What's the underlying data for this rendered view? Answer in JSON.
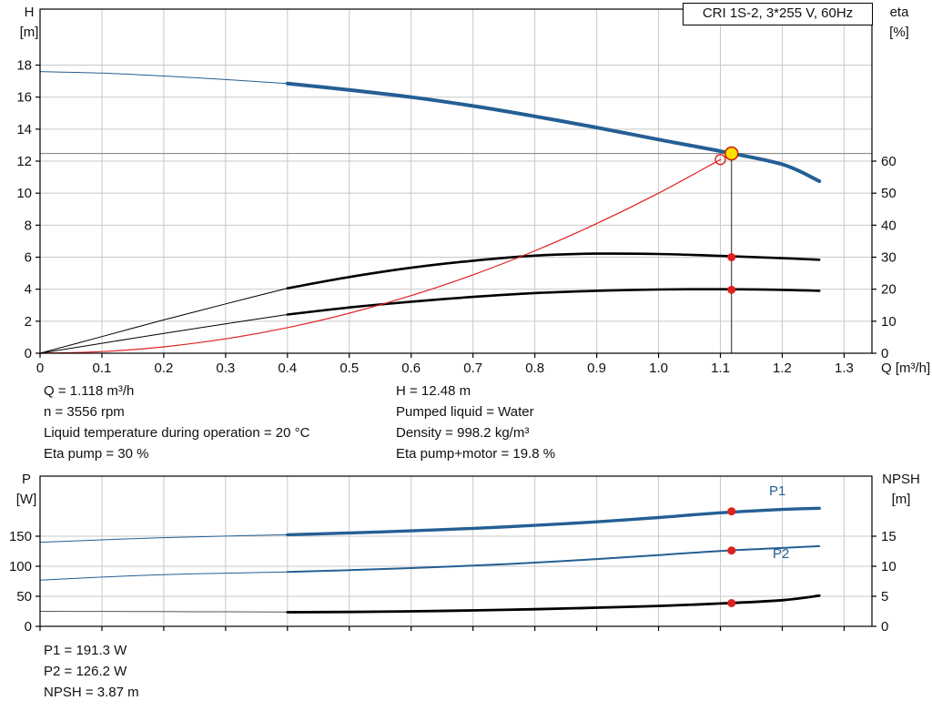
{
  "title_box": {
    "label": "CRI 1S-2, 3*255 V, 60Hz"
  },
  "top_axis_labels": {
    "left_1": "H",
    "left_2": "[m]",
    "right_1": "eta",
    "right_2": "[%]"
  },
  "bottom_axis_labels": {
    "left_1": "P",
    "left_2": "[W]",
    "right_1": "NPSH",
    "right_2": "[m]"
  },
  "curve_labels": {
    "p1": "P1",
    "p2": "P2"
  },
  "operating_point_text": {
    "q": "Q = 1.118 m³/h",
    "n": "n = 3556 rpm",
    "temp": "Liquid temperature during operation = 20 °C",
    "eta_pump": "Eta pump = 30 %",
    "h": "H = 12.48 m",
    "liquid": "Pumped liquid = Water",
    "density": "Density = 998.2 kg/m³",
    "eta_total": "Eta pump+motor = 19.8 %"
  },
  "power_point_text": {
    "p1": "P1 = 191.3 W",
    "p2": "P2 = 126.2 W",
    "npsh": "NPSH = 3.87 m"
  },
  "colors": {
    "curve_blue": "#245f94",
    "red": "#e02020",
    "black": "#000000",
    "grid": "#c9c9c9",
    "duty_line_gray": "#8c8c8c",
    "duty_fill_yellow": "#ffe100",
    "duty_ring": "#cc2200"
  },
  "chart_data": [
    {
      "id": "hq",
      "type": "line",
      "title": "CRI 1S-2, 3*255 V, 60Hz",
      "xlabel": "Q [m³/h]",
      "ylabel_left": "H [m]",
      "ylabel_right": "eta [%]",
      "xlim": [
        0,
        1.345
      ],
      "ylim_left": [
        0,
        21.5
      ],
      "right_scale": 0.2,
      "grid": true,
      "xticks": [
        {
          "v": 0,
          "label": "0"
        },
        {
          "v": 0.1,
          "label": "0.1"
        },
        {
          "v": 0.2,
          "label": "0.2"
        },
        {
          "v": 0.3,
          "label": "0.3"
        },
        {
          "v": 0.4,
          "label": "0.4"
        },
        {
          "v": 0.5,
          "label": "0.5"
        },
        {
          "v": 0.6,
          "label": "0.6"
        },
        {
          "v": 0.7,
          "label": "0.7"
        },
        {
          "v": 0.8,
          "label": "0.8"
        },
        {
          "v": 0.9,
          "label": "0.9"
        },
        {
          "v": 1.0,
          "label": "1.0"
        },
        {
          "v": 1.1,
          "label": "1.1"
        },
        {
          "v": 1.2,
          "label": "1.2"
        },
        {
          "v": 1.3,
          "label": "1.3"
        }
      ],
      "yticks_left": [
        {
          "v": 0,
          "label": "0"
        },
        {
          "v": 2,
          "label": "2"
        },
        {
          "v": 4,
          "label": "4"
        },
        {
          "v": 6,
          "label": "6"
        },
        {
          "v": 8,
          "label": "8"
        },
        {
          "v": 10,
          "label": "10"
        },
        {
          "v": 12,
          "label": "12"
        },
        {
          "v": 14,
          "label": "14"
        },
        {
          "v": 16,
          "label": "16"
        },
        {
          "v": 18,
          "label": "18"
        }
      ],
      "yticks_right": [
        {
          "v": 0,
          "label": "0"
        },
        {
          "v": 10,
          "label": "10"
        },
        {
          "v": 20,
          "label": "20"
        },
        {
          "v": 30,
          "label": "30"
        },
        {
          "v": 40,
          "label": "40"
        },
        {
          "v": 50,
          "label": "50"
        },
        {
          "v": 60,
          "label": "60"
        }
      ],
      "series": [
        {
          "name": "eta-pump-low-flow",
          "axis": "right",
          "color": "#000000",
          "width": 1,
          "points": [
            [
              0,
              0
            ],
            [
              0.1,
              5.2
            ],
            [
              0.2,
              10.4
            ],
            [
              0.3,
              15.4
            ],
            [
              0.4,
              20.3
            ]
          ]
        },
        {
          "name": "eta-pump-motor-low-flow",
          "axis": "right",
          "color": "#000000",
          "width": 1,
          "points": [
            [
              0,
              0
            ],
            [
              0.1,
              3.1
            ],
            [
              0.2,
              6.2
            ],
            [
              0.3,
              9.2
            ],
            [
              0.4,
              12.1
            ]
          ]
        },
        {
          "name": "eta-pump-curve",
          "axis": "right",
          "color": "#000000",
          "width": 2.6,
          "points": [
            [
              0.4,
              20.3
            ],
            [
              0.5,
              23.8
            ],
            [
              0.6,
              26.7
            ],
            [
              0.7,
              28.9
            ],
            [
              0.8,
              30.5
            ],
            [
              0.9,
              31.1
            ],
            [
              1.0,
              31.0
            ],
            [
              1.1,
              30.4
            ],
            [
              1.2,
              29.7
            ],
            [
              1.26,
              29.2
            ]
          ]
        },
        {
          "name": "eta-pump-motor-curve",
          "axis": "right",
          "color": "#000000",
          "width": 2.6,
          "points": [
            [
              0.4,
              12.1
            ],
            [
              0.5,
              14.3
            ],
            [
              0.6,
              16.1
            ],
            [
              0.7,
              17.6
            ],
            [
              0.8,
              18.8
            ],
            [
              0.9,
              19.5
            ],
            [
              1.0,
              19.9
            ],
            [
              1.1,
              20.0
            ],
            [
              1.2,
              19.8
            ],
            [
              1.26,
              19.5
            ]
          ]
        },
        {
          "name": "system-curve",
          "axis": "left",
          "color": "#e02020",
          "width": 1.2,
          "points": [
            [
              0,
              0
            ],
            [
              0.1,
              0.1
            ],
            [
              0.2,
              0.4
            ],
            [
              0.3,
              0.9
            ],
            [
              0.4,
              1.6
            ],
            [
              0.5,
              2.5
            ],
            [
              0.6,
              3.6
            ],
            [
              0.7,
              4.9
            ],
            [
              0.8,
              6.4
            ],
            [
              0.9,
              8.1
            ],
            [
              1.0,
              10.0
            ],
            [
              1.1,
              12.1
            ]
          ]
        },
        {
          "name": "head-curve-low-flow",
          "axis": "left",
          "color": "#245f94",
          "width": 1,
          "points": [
            [
              0,
              17.6
            ],
            [
              0.1,
              17.5
            ],
            [
              0.2,
              17.32
            ],
            [
              0.3,
              17.1
            ],
            [
              0.4,
              16.85
            ]
          ]
        },
        {
          "name": "head-curve",
          "axis": "left",
          "color": "#245f94",
          "width": 4,
          "points": [
            [
              0.4,
              16.85
            ],
            [
              0.5,
              16.45
            ],
            [
              0.6,
              16.0
            ],
            [
              0.7,
              15.45
            ],
            [
              0.8,
              14.8
            ],
            [
              0.9,
              14.1
            ],
            [
              1.0,
              13.35
            ],
            [
              1.1,
              12.62
            ],
            [
              1.2,
              11.8
            ],
            [
              1.26,
              10.75
            ]
          ]
        }
      ],
      "duty": {
        "vline_x": 1.118,
        "vline_top": 12.48,
        "hline_y": 12.48
      },
      "markers": [
        {
          "name": "requested-duty-point",
          "type": "open",
          "axis": "left",
          "x": 1.1,
          "y": 12.1
        },
        {
          "name": "eta-pump-duty-point",
          "type": "dot",
          "axis": "right",
          "x": 1.118,
          "y": 30.0
        },
        {
          "name": "eta-pump-motor-duty-point",
          "type": "dot",
          "axis": "right",
          "x": 1.118,
          "y": 19.8
        },
        {
          "name": "duty-point",
          "type": "duty",
          "axis": "left",
          "x": 1.118,
          "y": 12.48
        }
      ]
    },
    {
      "id": "power",
      "type": "line",
      "title": "",
      "xlabel": "",
      "ylabel_left": "P [W]",
      "ylabel_right": "NPSH [m]",
      "xlim": [
        0,
        1.345
      ],
      "ylim_left": [
        0,
        250
      ],
      "right_scale": 10,
      "grid": true,
      "xticks": [
        {
          "v": 0
        },
        {
          "v": 0.1
        },
        {
          "v": 0.2
        },
        {
          "v": 0.3
        },
        {
          "v": 0.4
        },
        {
          "v": 0.5
        },
        {
          "v": 0.6
        },
        {
          "v": 0.7
        },
        {
          "v": 0.8
        },
        {
          "v": 0.9
        },
        {
          "v": 1.0
        },
        {
          "v": 1.1
        },
        {
          "v": 1.2
        },
        {
          "v": 1.3
        }
      ],
      "yticks_left": [
        {
          "v": 0,
          "label": "0"
        },
        {
          "v": 50,
          "label": "50"
        },
        {
          "v": 100,
          "label": "100"
        },
        {
          "v": 150,
          "label": "150"
        }
      ],
      "yticks_right": [
        {
          "v": 0,
          "label": "0"
        },
        {
          "v": 5,
          "label": "5"
        },
        {
          "v": 10,
          "label": "10"
        },
        {
          "v": 15,
          "label": "15"
        }
      ],
      "series": [
        {
          "name": "p1-low-flow",
          "axis": "left",
          "color": "#245f94",
          "width": 1,
          "points": [
            [
              0,
              140
            ],
            [
              0.1,
              144
            ],
            [
              0.2,
              147.5
            ],
            [
              0.3,
              150.2
            ],
            [
              0.4,
              152.5
            ]
          ]
        },
        {
          "name": "p2-low-flow",
          "axis": "left",
          "color": "#245f94",
          "width": 1,
          "points": [
            [
              0,
              77
            ],
            [
              0.1,
              82
            ],
            [
              0.2,
              86
            ],
            [
              0.3,
              88.5
            ],
            [
              0.4,
              90.5
            ]
          ]
        },
        {
          "name": "npsh-low-flow",
          "axis": "right",
          "color": "#555555",
          "width": 1,
          "points": [
            [
              0,
              2.5
            ],
            [
              0.1,
              2.48
            ],
            [
              0.2,
              2.45
            ],
            [
              0.3,
              2.42
            ],
            [
              0.4,
              2.38
            ]
          ]
        },
        {
          "name": "p1-curve",
          "axis": "left",
          "color": "#245f94",
          "width": 3.4,
          "points": [
            [
              0.4,
              152.5
            ],
            [
              0.5,
              155.5
            ],
            [
              0.6,
              159
            ],
            [
              0.7,
              163
            ],
            [
              0.8,
              168
            ],
            [
              0.9,
              174
            ],
            [
              1.0,
              181
            ],
            [
              1.1,
              189
            ],
            [
              1.2,
              194.5
            ],
            [
              1.26,
              196.5
            ]
          ]
        },
        {
          "name": "p2-curve",
          "axis": "left",
          "color": "#245f94",
          "width": 2,
          "points": [
            [
              0.4,
              90.5
            ],
            [
              0.5,
              93.5
            ],
            [
              0.6,
              97
            ],
            [
              0.7,
              101
            ],
            [
              0.8,
              106
            ],
            [
              0.9,
              112
            ],
            [
              1.0,
              118.5
            ],
            [
              1.1,
              125.5
            ],
            [
              1.2,
              130.5
            ],
            [
              1.26,
              133.5
            ]
          ]
        },
        {
          "name": "npsh-curve",
          "axis": "right",
          "color": "#000000",
          "width": 2.8,
          "points": [
            [
              0.4,
              2.35
            ],
            [
              0.5,
              2.4
            ],
            [
              0.6,
              2.5
            ],
            [
              0.7,
              2.65
            ],
            [
              0.8,
              2.85
            ],
            [
              0.9,
              3.1
            ],
            [
              1.0,
              3.4
            ],
            [
              1.1,
              3.8
            ],
            [
              1.2,
              4.35
            ],
            [
              1.26,
              5.1
            ]
          ]
        }
      ],
      "markers": [
        {
          "name": "p1-duty-point",
          "type": "dot",
          "axis": "left",
          "x": 1.118,
          "y": 191.3
        },
        {
          "name": "p2-duty-point",
          "type": "dot",
          "axis": "left",
          "x": 1.118,
          "y": 126.2
        },
        {
          "name": "npsh-duty-point",
          "type": "dot",
          "axis": "right",
          "x": 1.118,
          "y": 3.87
        }
      ]
    }
  ]
}
